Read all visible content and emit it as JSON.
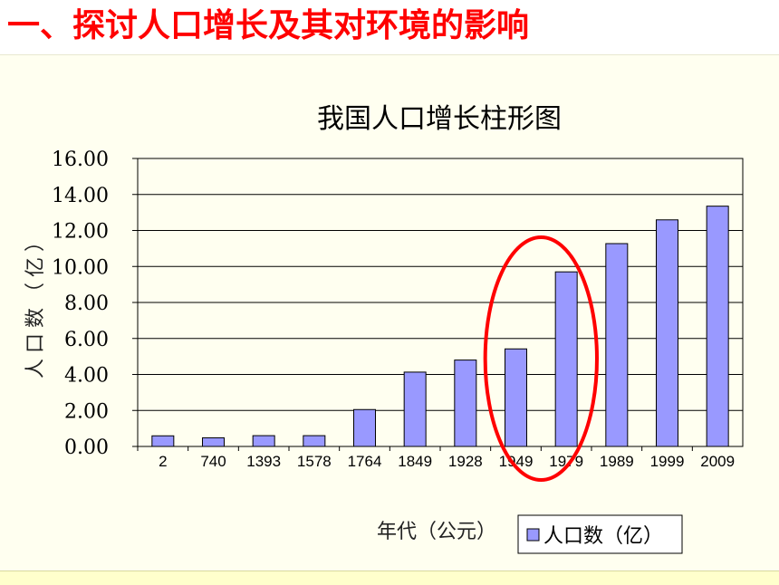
{
  "slide": {
    "title": "一、探讨人口增长及其对环境的影响"
  },
  "chart_data": {
    "type": "bar",
    "title": "我国人口增长柱形图",
    "xlabel": "年代（公元）",
    "ylabel": "人口数（亿）",
    "categories": [
      "2",
      "740",
      "1393",
      "1578",
      "1764",
      "1849",
      "1928",
      "1949",
      "1979",
      "1989",
      "1999",
      "2009"
    ],
    "series": [
      {
        "name": "人口数（亿）",
        "values": [
          0.59,
          0.48,
          0.6,
          0.6,
          2.05,
          4.13,
          4.8,
          5.42,
          9.7,
          11.27,
          12.59,
          13.35
        ]
      }
    ],
    "y_ticks": [
      "0.00",
      "2.00",
      "4.00",
      "6.00",
      "8.00",
      "10.00",
      "12.00",
      "14.00",
      "16.00"
    ],
    "ylim": [
      0,
      16
    ],
    "grid": true,
    "legend": "bottom-right",
    "bar_color": "#9999ff",
    "highlight": {
      "shape": "ellipse",
      "color": "#ff0000",
      "categories": [
        "1949",
        "1979"
      ]
    }
  }
}
